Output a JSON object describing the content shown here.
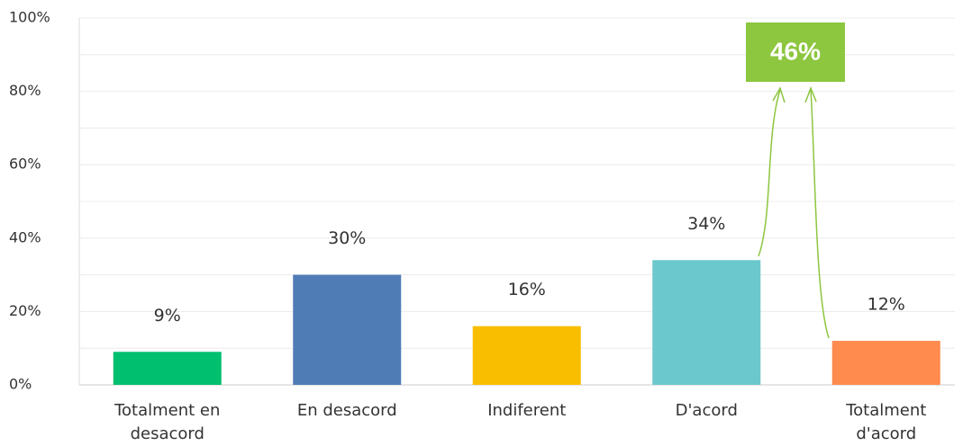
{
  "chart_data": {
    "type": "bar",
    "categories": [
      "Totalment en desacord",
      "En desacord",
      "Indiferent",
      "D'acord",
      "Totalment d'acord"
    ],
    "values": [
      9,
      30,
      16,
      34,
      12
    ],
    "value_labels": [
      "9%",
      "30%",
      "16%",
      "34%",
      "12%"
    ],
    "colors": [
      "#00bf6f",
      "#507cb6",
      "#f9be00",
      "#6bc8cd",
      "#ff8b4f"
    ],
    "ylim": [
      0,
      100
    ],
    "yticks": [
      {
        "value": 0,
        "label": "0%"
      },
      {
        "value": 20,
        "label": "20%"
      },
      {
        "value": 40,
        "label": "40%"
      },
      {
        "value": 60,
        "label": "60%"
      },
      {
        "value": 80,
        "label": "80%"
      },
      {
        "value": 100,
        "label": "100%"
      }
    ],
    "minor_yticks": [
      10,
      30,
      50,
      70,
      90
    ],
    "grid": true,
    "annotation": {
      "text": "46%",
      "color": "#8dc63f"
    }
  }
}
